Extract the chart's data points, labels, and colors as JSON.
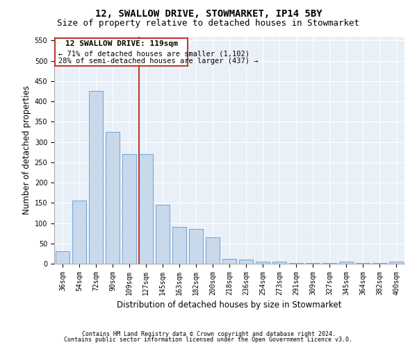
{
  "title": "12, SWALLOW DRIVE, STOWMARKET, IP14 5BY",
  "subtitle": "Size of property relative to detached houses in Stowmarket",
  "xlabel": "Distribution of detached houses by size in Stowmarket",
  "ylabel": "Number of detached properties",
  "categories": [
    "36sqm",
    "54sqm",
    "72sqm",
    "90sqm",
    "109sqm",
    "127sqm",
    "145sqm",
    "163sqm",
    "182sqm",
    "200sqm",
    "218sqm",
    "236sqm",
    "254sqm",
    "273sqm",
    "291sqm",
    "309sqm",
    "327sqm",
    "345sqm",
    "364sqm",
    "382sqm",
    "400sqm"
  ],
  "values": [
    30,
    155,
    425,
    325,
    270,
    270,
    145,
    90,
    85,
    65,
    12,
    10,
    5,
    5,
    2,
    2,
    2,
    5,
    2,
    2,
    5
  ],
  "bar_color": "#c8d9eb",
  "bar_edge_color": "#5b9bd5",
  "background_color": "#eaf0f7",
  "vline_color": "#c0392b",
  "vline_x_index": 4.575,
  "annotation_title": "12 SWALLOW DRIVE: 119sqm",
  "annotation_line1": "← 71% of detached houses are smaller (1,102)",
  "annotation_line2": "28% of semi-detached houses are larger (437) →",
  "annotation_box_color": "#c0392b",
  "footer_line1": "Contains HM Land Registry data © Crown copyright and database right 2024.",
  "footer_line2": "Contains public sector information licensed under the Open Government Licence v3.0.",
  "ylim": [
    0,
    560
  ],
  "yticks": [
    0,
    50,
    100,
    150,
    200,
    250,
    300,
    350,
    400,
    450,
    500,
    550
  ],
  "title_fontsize": 10,
  "subtitle_fontsize": 9,
  "tick_fontsize": 7,
  "label_fontsize": 8.5,
  "footer_fontsize": 6,
  "ann_title_fontsize": 8,
  "ann_text_fontsize": 7.5
}
